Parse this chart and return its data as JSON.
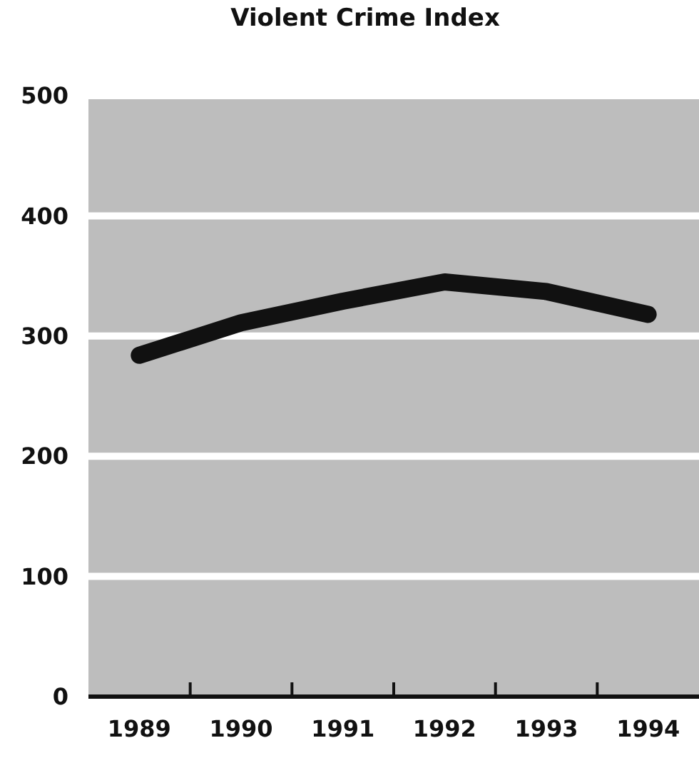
{
  "chart_data": {
    "type": "line",
    "title": "Violent Crime Index",
    "categories": [
      "1989",
      "1990",
      "1991",
      "1992",
      "1993",
      "1994"
    ],
    "series": [
      {
        "color": "#111111",
        "values": [
          284,
          311,
          329,
          345,
          337,
          318
        ]
      }
    ],
    "ylim": [
      0,
      500
    ],
    "yticks": [
      0,
      100,
      200,
      300,
      400,
      500
    ],
    "grid": "y",
    "marker": "none",
    "line_style": "solid"
  }
}
